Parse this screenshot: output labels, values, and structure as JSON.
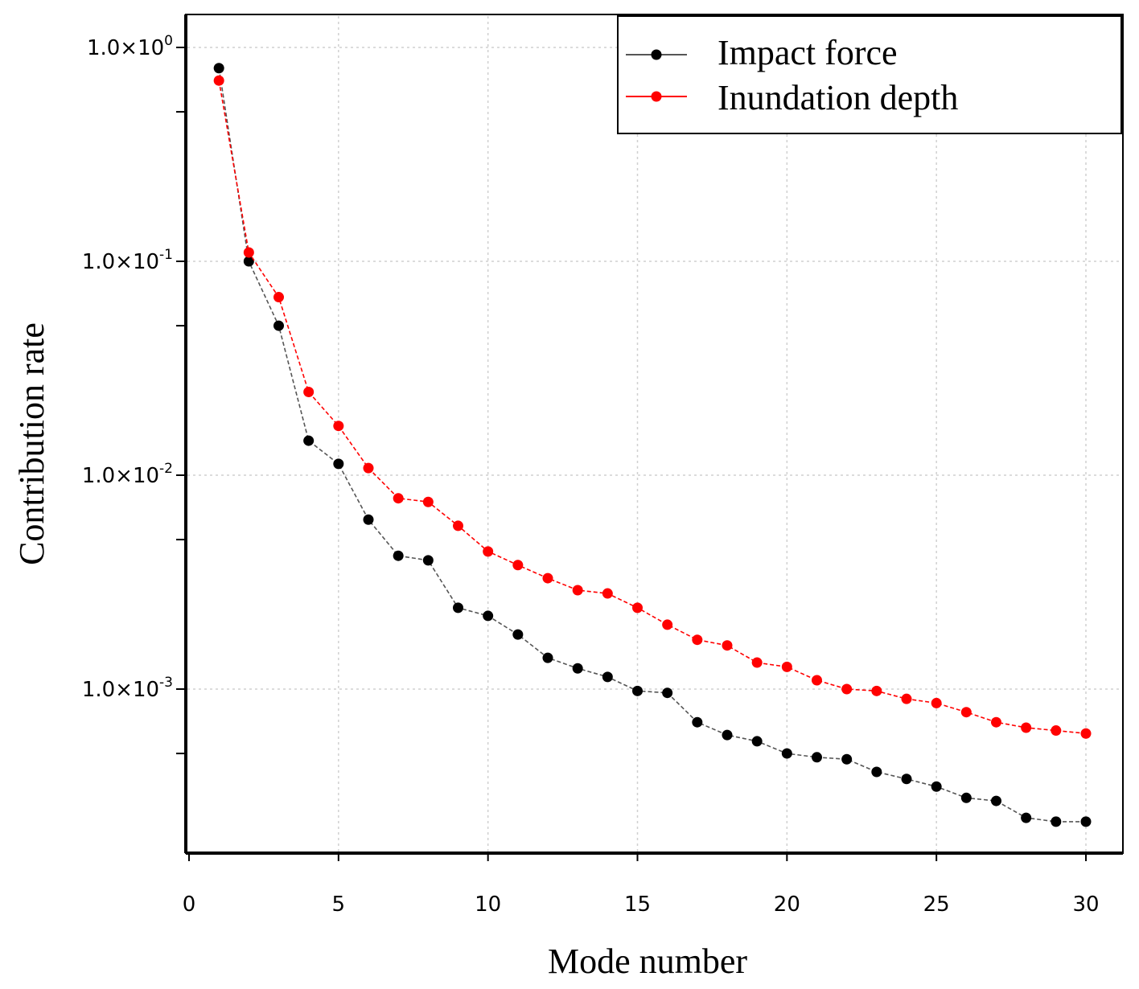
{
  "chart_data": {
    "type": "line",
    "title": "",
    "xlabel": "Mode number",
    "ylabel": "Contribution rate",
    "xscale": "linear",
    "yscale": "log",
    "xlim": [
      0,
      31
    ],
    "ylim_log10": [
      -3.76,
      0.2
    ],
    "grid": true,
    "legend_position": "top-right",
    "x_ticks": [
      0,
      5,
      10,
      15,
      20,
      25,
      30
    ],
    "x_tick_labels": [
      "0",
      "5",
      "10",
      "15",
      "20",
      "25",
      "30"
    ],
    "y_ticks": [
      {
        "value": 1.0,
        "mant": "1.0×10",
        "exp": "0"
      },
      {
        "value": 0.1,
        "mant": "1.0×10",
        "exp": "-1"
      },
      {
        "value": 0.01,
        "mant": "1.0×10",
        "exp": "-2"
      },
      {
        "value": 0.001,
        "mant": "1.0×10",
        "exp": "-3"
      }
    ],
    "y_minor_ticks": [
      0.5,
      0.05,
      0.005,
      0.0005
    ],
    "x": [
      1,
      2,
      3,
      4,
      5,
      6,
      7,
      8,
      9,
      10,
      11,
      12,
      13,
      14,
      15,
      16,
      17,
      18,
      19,
      20,
      21,
      22,
      23,
      24,
      25,
      26,
      27,
      28,
      29,
      30
    ],
    "series": [
      {
        "name": "Impact force",
        "color": "#000000",
        "line_color": "#555555",
        "values": [
          0.8,
          0.1,
          0.05,
          0.0145,
          0.0113,
          0.0062,
          0.0042,
          0.004,
          0.0024,
          0.0022,
          0.0018,
          0.0014,
          0.00125,
          0.00114,
          0.00098,
          0.00096,
          0.0007,
          0.00061,
          0.00057,
          0.0005,
          0.00048,
          0.00047,
          0.00041,
          0.00038,
          0.00035,
          0.00031,
          0.0003,
          0.00025,
          0.00024,
          0.00024
        ]
      },
      {
        "name": "Inundation depth",
        "color": "#ff0000",
        "line_color": "#ff0000",
        "values": [
          0.7,
          0.11,
          0.068,
          0.0245,
          0.017,
          0.0108,
          0.0078,
          0.0075,
          0.0058,
          0.0044,
          0.0038,
          0.0033,
          0.0029,
          0.0028,
          0.0024,
          0.002,
          0.0017,
          0.0016,
          0.00133,
          0.00127,
          0.0011,
          0.001,
          0.00098,
          0.0009,
          0.00086,
          0.00078,
          0.0007,
          0.00066,
          0.00064,
          0.00062
        ]
      }
    ]
  }
}
